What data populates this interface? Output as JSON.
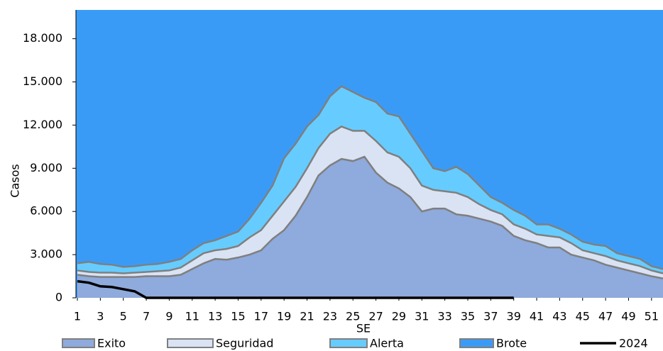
{
  "chart_data": {
    "type": "stacked-area",
    "y_label": "Casos",
    "x_label": "SE",
    "x": [
      1,
      2,
      3,
      4,
      5,
      6,
      7,
      8,
      9,
      10,
      11,
      12,
      13,
      14,
      15,
      16,
      17,
      18,
      19,
      20,
      21,
      22,
      23,
      24,
      25,
      26,
      27,
      28,
      29,
      30,
      31,
      32,
      33,
      34,
      35,
      36,
      37,
      38,
      39,
      40,
      41,
      42,
      43,
      44,
      45,
      46,
      47,
      48,
      49,
      50,
      51,
      52
    ],
    "xlim": [
      1,
      52
    ],
    "xticks": [
      1,
      3,
      5,
      7,
      9,
      11,
      13,
      15,
      17,
      19,
      21,
      23,
      25,
      27,
      29,
      31,
      33,
      35,
      37,
      39,
      41,
      43,
      45,
      47,
      49,
      51
    ],
    "ylim": [
      0,
      20000
    ],
    "yticks": [
      0,
      {
        "value": 3000,
        "label": "3.000"
      },
      {
        "value": 6000,
        "label": "6.000"
      },
      {
        "value": 9000,
        "label": "9.000"
      },
      {
        "value": 12000,
        "label": "12.000"
      },
      {
        "value": 15000,
        "label": "15.000"
      },
      {
        "value": 18000,
        "label": "18.000"
      }
    ],
    "series": [
      {
        "name": "Exito",
        "color": "#8faadc",
        "values": [
          1600,
          1500,
          1450,
          1450,
          1450,
          1450,
          1500,
          1500,
          1500,
          1600,
          2000,
          2400,
          2700,
          2650,
          2800,
          3000,
          3300,
          4100,
          4700,
          5700,
          7000,
          8500,
          9200,
          9650,
          9500,
          9800,
          8700,
          8000,
          7600,
          7000,
          6000,
          6200,
          6200,
          5800,
          5700,
          5500,
          5300,
          5000,
          4300,
          4000,
          3800,
          3500,
          3500,
          3000,
          2800,
          2600,
          2300,
          2100,
          1900,
          1700,
          1500,
          1350
        ]
      },
      {
        "name": "Seguridad",
        "color": "#dae3f3",
        "values": [
          300,
          300,
          300,
          300,
          250,
          300,
          300,
          350,
          400,
          500,
          600,
          700,
          600,
          750,
          800,
          1200,
          1400,
          1600,
          2000,
          2000,
          2000,
          1900,
          2200,
          2250,
          2100,
          1800,
          2200,
          2100,
          2200,
          2000,
          1800,
          1300,
          1200,
          1500,
          1300,
          1000,
          800,
          800,
          800,
          800,
          600,
          800,
          700,
          800,
          500,
          500,
          600,
          500,
          500,
          500,
          400,
          350
        ]
      },
      {
        "name": "Alerta",
        "color": "#66ccff",
        "values": [
          500,
          700,
          600,
          550,
          450,
          450,
          500,
          500,
          600,
          600,
          700,
          700,
          700,
          900,
          1000,
          1300,
          1900,
          2100,
          3000,
          3000,
          2900,
          2300,
          2600,
          2800,
          2700,
          2300,
          2700,
          2700,
          2800,
          2400,
          2400,
          1500,
          1400,
          1800,
          1600,
          1300,
          900,
          800,
          1000,
          900,
          700,
          800,
          600,
          600,
          600,
          600,
          700,
          500,
          500,
          500,
          300,
          300
        ]
      },
      {
        "name": "Brote",
        "color": "#3a9bf7"
      },
      {
        "name": "2024",
        "type": "line",
        "color": "#000000",
        "values": [
          1150,
          1050,
          800,
          750,
          600,
          450,
          0,
          0,
          0,
          0,
          0,
          0,
          0,
          0,
          0,
          0,
          0,
          0,
          0,
          0,
          0,
          0,
          0,
          0,
          0,
          0,
          0,
          0,
          0,
          0,
          0,
          0,
          0,
          0,
          0,
          0,
          0,
          0,
          0,
          null,
          null,
          null,
          null,
          null,
          null,
          null,
          null,
          null,
          null,
          null,
          null,
          null
        ]
      }
    ]
  }
}
